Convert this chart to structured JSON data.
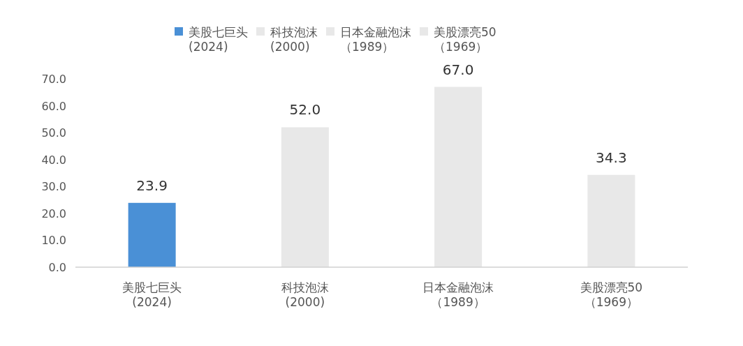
{
  "chart_data": {
    "type": "bar",
    "categories": [
      "美股七巨头(2024)",
      "科技泡沫(2000)",
      "日本金融泡沫（1989）",
      "美股漂亮50（1969）"
    ],
    "series": [
      {
        "name": "美股七巨头(2024)",
        "color": "#4a90d6",
        "values": [
          23.9,
          null,
          null,
          null
        ],
        "value_labels": [
          "23.9",
          null,
          null,
          null
        ]
      },
      {
        "name": "科技泡沫(2000)",
        "color": "#e8e8e8",
        "values": [
          null,
          52.0,
          null,
          null
        ],
        "value_labels": [
          null,
          "52.0",
          null,
          null
        ]
      },
      {
        "name": "日本金融泡沫（1989）",
        "color": "#e8e8e8",
        "values": [
          null,
          null,
          67.0,
          null
        ],
        "value_labels": [
          null,
          null,
          "67.0",
          null
        ]
      },
      {
        "name": "美股漂亮50（1969）",
        "color": "#e8e8e8",
        "values": [
          null,
          null,
          null,
          34.3
        ],
        "value_labels": [
          null,
          null,
          null,
          "34.3"
        ]
      }
    ],
    "ylim": [
      0,
      70
    ],
    "yticks": [
      {
        "value": 0,
        "label": "0.0"
      },
      {
        "value": 10,
        "label": "10.0"
      },
      {
        "value": 20,
        "label": "20.0"
      },
      {
        "value": 30,
        "label": "30.0"
      },
      {
        "value": 40,
        "label": "40.0"
      },
      {
        "value": 50,
        "label": "50.0"
      },
      {
        "value": 60,
        "label": "60.0"
      },
      {
        "value": 70,
        "label": "70.0"
      }
    ],
    "grid": false,
    "legend": "top"
  }
}
